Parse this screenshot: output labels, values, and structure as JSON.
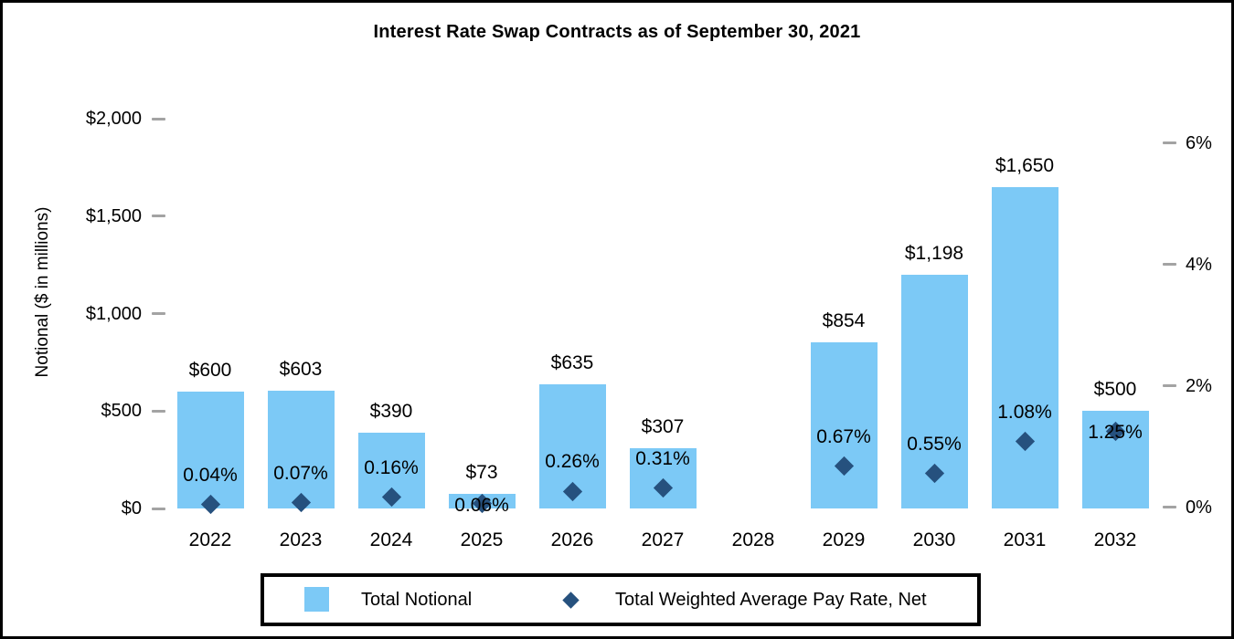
{
  "chart_data": {
    "type": "bar",
    "title": "Interest Rate Swap Contracts as of September 30, 2021",
    "categories": [
      "2022",
      "2023",
      "2024",
      "2025",
      "2026",
      "2027",
      "2028",
      "2029",
      "2030",
      "2031",
      "2032"
    ],
    "series": [
      {
        "name": "Total Notional",
        "type": "bar",
        "axis": "left",
        "values": [
          600,
          603,
          390,
          73,
          635,
          307,
          null,
          854,
          1198,
          1650,
          500
        ],
        "labels": [
          "$600",
          "$603",
          "$390",
          "$73",
          "$635",
          "$307",
          "",
          "$854",
          "$1,198",
          "$1,650",
          "$500"
        ]
      },
      {
        "name": "Total Weighted Average Pay Rate, Net",
        "type": "scatter",
        "marker": "diamond",
        "axis": "right",
        "values": [
          0.04,
          0.07,
          0.16,
          0.06,
          0.26,
          0.31,
          null,
          0.67,
          0.55,
          1.08,
          1.25
        ],
        "labels": [
          "0.04%",
          "0.07%",
          "0.16%",
          "0.06%",
          "0.26%",
          "0.31%",
          "",
          "0.67%",
          "0.55%",
          "1.08%",
          "1.25%"
        ],
        "label_overlaps_marker": [
          false,
          false,
          false,
          true,
          false,
          false,
          false,
          false,
          false,
          false,
          true
        ]
      }
    ],
    "left_axis": {
      "title": "Notional ($ in millions)",
      "range": [
        0,
        2000
      ],
      "ticks": [
        {
          "value": 2000,
          "label": "$2,000"
        },
        {
          "value": 1500,
          "label": "$1,500"
        },
        {
          "value": 1000,
          "label": "$1,000"
        },
        {
          "value": 500,
          "label": "$500"
        },
        {
          "value": 0,
          "label": "$0"
        }
      ]
    },
    "right_axis": {
      "range": [
        0,
        6
      ],
      "ticks": [
        {
          "value": 6,
          "label": "6%"
        },
        {
          "value": 4,
          "label": "4%"
        },
        {
          "value": 2,
          "label": "2%"
        },
        {
          "value": 0,
          "label": "0%"
        }
      ]
    },
    "legend": [
      {
        "label": "Total Notional",
        "marker": "square"
      },
      {
        "label": "Total Weighted Average Pay Rate, Net",
        "marker": "diamond"
      }
    ],
    "grid": false,
    "legend_position": "bottom",
    "colors": {
      "bar": "#7CC9F6",
      "marker": "#26517E",
      "tick": "#A3A3A3",
      "text": "#000000"
    }
  }
}
